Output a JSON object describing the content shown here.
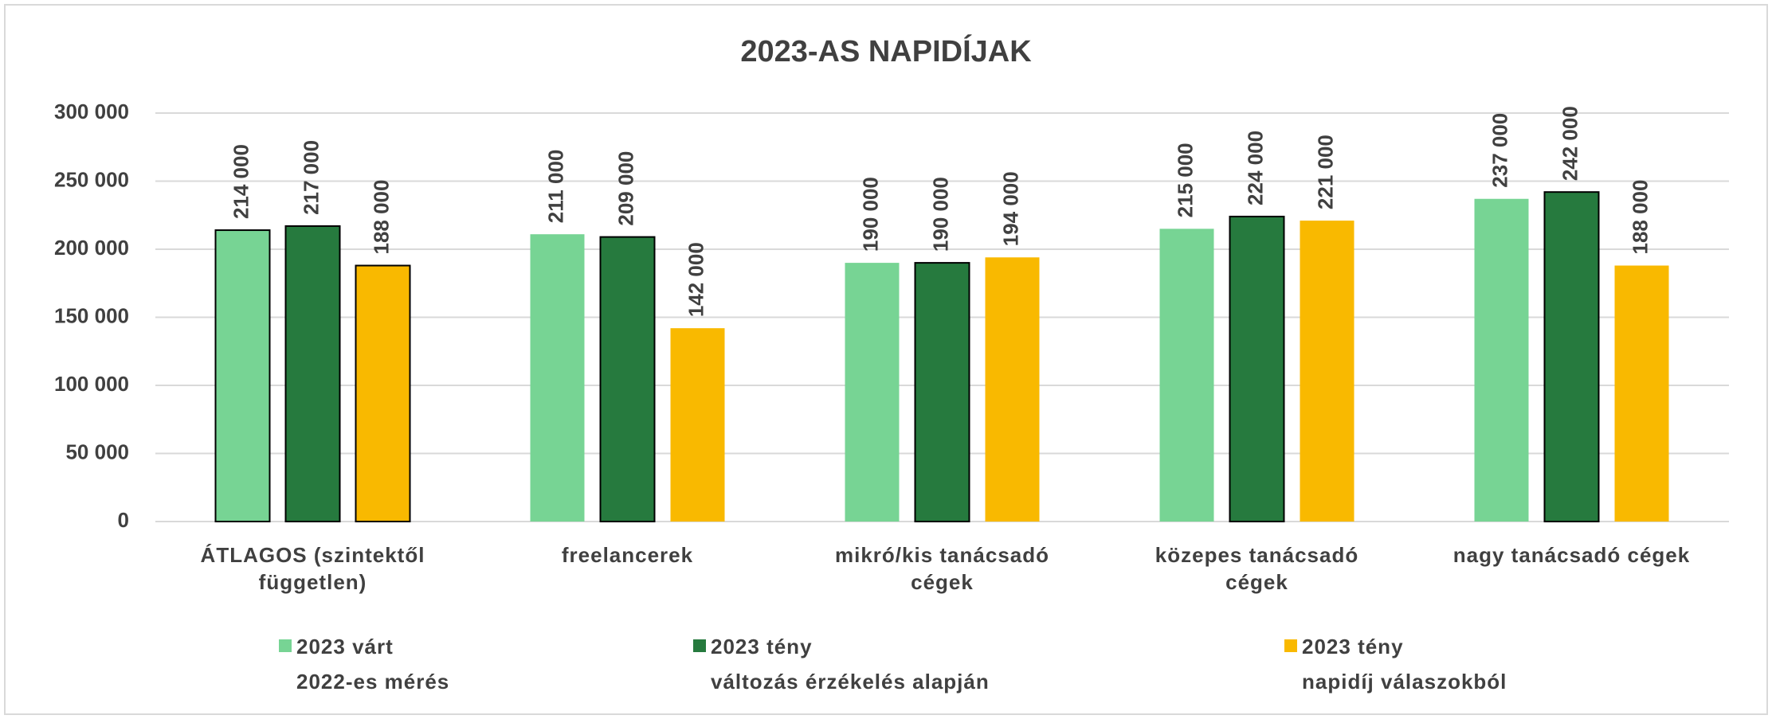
{
  "chart_data": {
    "type": "bar",
    "title": "2023-AS NAPIDÍJAK",
    "categories": [
      "ÁTLAGOS (szintektől független)",
      "freelancerek",
      "mikró/kis tanácsadó cégek",
      "közepes tanácsadó cégek",
      "nagy tanácsadó cégek"
    ],
    "series": [
      {
        "name": "2023 várt\n2022-es mérés",
        "color": "#77d494",
        "values": [
          214000,
          211000,
          190000,
          215000,
          237000
        ],
        "value_labels": [
          "214 000",
          "211 000",
          "190 000",
          "215 000",
          "237 000"
        ]
      },
      {
        "name": "2023 tény\nváltozás érzékelés alapján",
        "color": "#267a3e",
        "values": [
          217000,
          209000,
          190000,
          224000,
          242000
        ],
        "value_labels": [
          "217 000",
          "209 000",
          "190 000",
          "224 000",
          "242 000"
        ]
      },
      {
        "name": "2023 tény\nnapidíj válaszokból",
        "color": "#f9b900",
        "values": [
          188000,
          142000,
          194000,
          221000,
          188000
        ],
        "value_labels": [
          "188 000",
          "142 000",
          "194 000",
          "221 000",
          "188 000"
        ]
      }
    ],
    "ylim": [
      0,
      300000
    ],
    "yticks": [
      0,
      {
        "value": 50000,
        "label": "50 000"
      },
      {
        "value": 100000,
        "label": "100 000"
      },
      {
        "value": 150000,
        "label": "150 000"
      },
      {
        "value": 200000,
        "label": "200 000"
      },
      {
        "value": 250000,
        "label": "250 000"
      },
      {
        "value": 300000,
        "label": "300 000"
      }
    ],
    "grid": true
  }
}
